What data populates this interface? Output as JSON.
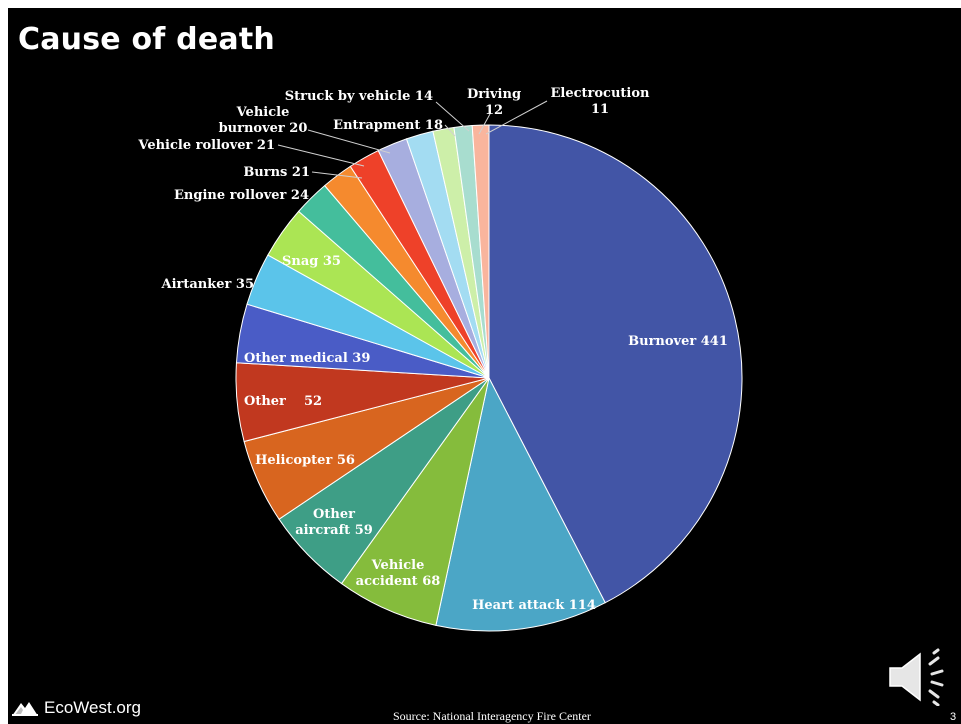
{
  "title": "Cause of death",
  "footer": {
    "logo_text": "EcoWest.org",
    "source": "Source:  National Interagency Fire Center",
    "page_number": "3"
  },
  "icons": {
    "logo": "mountain-logo-icon",
    "audio": "speaker-icon"
  },
  "chart_data": {
    "type": "pie",
    "title": "",
    "start": "top, clockwise",
    "label_color_inside": "#ffffff",
    "label_color_outside": "#ffffff",
    "slices": [
      {
        "label": "Burnover 441",
        "value": 441,
        "color": "#4255A6",
        "text_lines": [
          "Burnover 441"
        ]
      },
      {
        "label": "Heart attack 114",
        "value": 114,
        "color": "#4BA6C6",
        "text_lines": [
          "Heart attack 114"
        ]
      },
      {
        "label": "Vehicle accident 68",
        "value": 68,
        "color": "#85BC3C",
        "text_lines": [
          "Vehicle",
          "accident 68"
        ]
      },
      {
        "label": "Other aircraft 59",
        "value": 59,
        "color": "#3E9E86",
        "text_lines": [
          "Other",
          "aircraft 59"
        ]
      },
      {
        "label": "Helicopter 56",
        "value": 56,
        "color": "#D8651F",
        "text_lines": [
          "Helicopter 56"
        ]
      },
      {
        "label": "Other 52",
        "value": 52,
        "color": "#C1381F",
        "text_lines": [
          "Other    52"
        ]
      },
      {
        "label": "Other medical 39",
        "value": 39,
        "color": "#4A5CC6",
        "text_lines": [
          "Other medical 39"
        ]
      },
      {
        "label": "Airtanker 35",
        "value": 35,
        "color": "#5BC4EA",
        "text_lines": [
          "Airtanker 35"
        ]
      },
      {
        "label": "Snag 35",
        "value": 35,
        "color": "#ABE554",
        "text_lines": [
          "Snag 35"
        ]
      },
      {
        "label": "Engine rollover 24",
        "value": 24,
        "color": "#44BE9C",
        "text_lines": [
          "Engine rollover 24"
        ]
      },
      {
        "label": "Burns 21",
        "value": 21,
        "color": "#F58A2E",
        "text_lines": [
          "Burns 21"
        ]
      },
      {
        "label": "Vehicle rollover 21",
        "value": 21,
        "color": "#EE4129",
        "text_lines": [
          "Vehicle rollover 21"
        ]
      },
      {
        "label": "Vehicle burnover 20",
        "value": 20,
        "color": "#A7AEDF",
        "text_lines": [
          "Vehicle",
          "burnover 20"
        ]
      },
      {
        "label": "Entrapment 18",
        "value": 18,
        "color": "#A3DCF2",
        "text_lines": [
          "Entrapment 18"
        ]
      },
      {
        "label": "Struck by vehicle 14",
        "value": 14,
        "color": "#CDEFA9",
        "text_lines": [
          "Struck by vehicle 14"
        ]
      },
      {
        "label": "Driving 12",
        "value": 12,
        "color": "#A8DDCF",
        "text_lines": [
          "Driving",
          "12"
        ]
      },
      {
        "label": "Electrocution 11",
        "value": 11,
        "color": "#F9B59D",
        "text_lines": [
          "Electrocution",
          "11"
        ]
      }
    ]
  }
}
